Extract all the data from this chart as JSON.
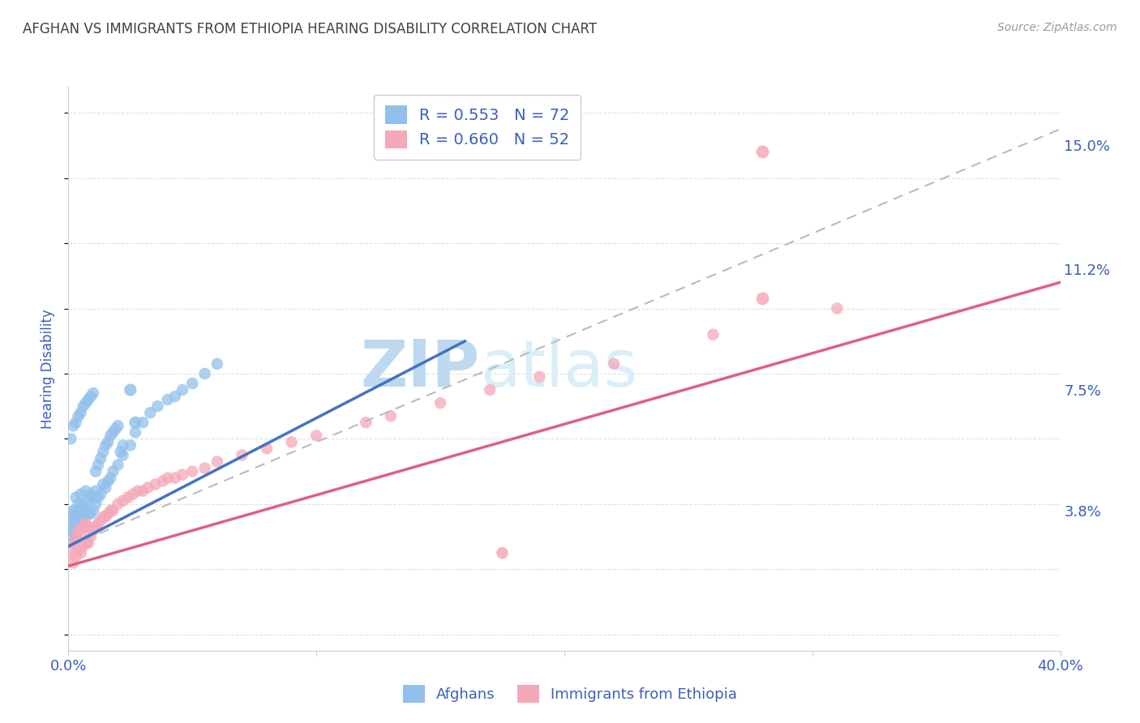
{
  "title": "AFGHAN VS IMMIGRANTS FROM ETHIOPIA HEARING DISABILITY CORRELATION CHART",
  "source": "Source: ZipAtlas.com",
  "ylabel": "Hearing Disability",
  "xlim": [
    0.0,
    0.4
  ],
  "ylim": [
    -0.005,
    0.168
  ],
  "xticks": [
    0.0,
    0.1,
    0.2,
    0.3,
    0.4
  ],
  "xticklabels": [
    "0.0%",
    "",
    "",
    "",
    "40.0%"
  ],
  "ytick_positions": [
    0.038,
    0.075,
    0.112,
    0.15
  ],
  "ytick_labels": [
    "3.8%",
    "7.5%",
    "11.2%",
    "15.0%"
  ],
  "blue_R": 0.553,
  "blue_N": 72,
  "pink_R": 0.66,
  "pink_N": 52,
  "blue_color": "#92C0EC",
  "pink_color": "#F4A8B8",
  "blue_line_color": "#4472C4",
  "pink_line_color": "#E06080",
  "dashed_line_color": "#BBBBBB",
  "legend_text_color": "#3A5FBB",
  "title_color": "#404040",
  "tick_label_color": "#3A5FBB",
  "background_color": "#FFFFFF",
  "watermark_zip": "ZIP",
  "watermark_atlas": "atlas",
  "watermark_color": "#D8EEF8",
  "grid_color": "#E0E0E0",
  "legend_label_blue": "Afghans",
  "legend_label_pink": "Immigrants from Ethiopia",
  "blue_trendline_x": [
    0.0,
    0.16
  ],
  "blue_trendline_y": [
    0.027,
    0.09
  ],
  "pink_trendline_x": [
    0.0,
    0.4
  ],
  "pink_trendline_y": [
    0.021,
    0.108
  ],
  "dashed_trendline_x": [
    0.0,
    0.4
  ],
  "dashed_trendline_y": [
    0.027,
    0.155
  ],
  "afghans_x": [
    0.001,
    0.001,
    0.001,
    0.002,
    0.002,
    0.002,
    0.002,
    0.003,
    0.003,
    0.003,
    0.003,
    0.004,
    0.004,
    0.004,
    0.005,
    0.005,
    0.005,
    0.006,
    0.006,
    0.007,
    0.007,
    0.007,
    0.008,
    0.008,
    0.009,
    0.009,
    0.01,
    0.01,
    0.011,
    0.011,
    0.012,
    0.013,
    0.014,
    0.015,
    0.016,
    0.017,
    0.018,
    0.02,
    0.022,
    0.025,
    0.027,
    0.03,
    0.033,
    0.036,
    0.04,
    0.043,
    0.046,
    0.05,
    0.055,
    0.06,
    0.001,
    0.002,
    0.003,
    0.004,
    0.005,
    0.006,
    0.007,
    0.008,
    0.009,
    0.01,
    0.011,
    0.012,
    0.013,
    0.014,
    0.015,
    0.016,
    0.017,
    0.018,
    0.019,
    0.02,
    0.021,
    0.022
  ],
  "afghans_y": [
    0.03,
    0.033,
    0.036,
    0.028,
    0.032,
    0.035,
    0.038,
    0.03,
    0.034,
    0.038,
    0.042,
    0.033,
    0.037,
    0.04,
    0.035,
    0.039,
    0.043,
    0.036,
    0.04,
    0.033,
    0.038,
    0.044,
    0.037,
    0.041,
    0.037,
    0.043,
    0.038,
    0.042,
    0.04,
    0.044,
    0.042,
    0.043,
    0.046,
    0.045,
    0.047,
    0.048,
    0.05,
    0.052,
    0.055,
    0.058,
    0.062,
    0.065,
    0.068,
    0.07,
    0.072,
    0.073,
    0.075,
    0.077,
    0.08,
    0.083,
    0.06,
    0.064,
    0.065,
    0.067,
    0.068,
    0.07,
    0.071,
    0.072,
    0.073,
    0.074,
    0.05,
    0.052,
    0.054,
    0.056,
    0.058,
    0.059,
    0.061,
    0.062,
    0.063,
    0.064,
    0.056,
    0.058
  ],
  "ethiopia_x": [
    0.001,
    0.002,
    0.002,
    0.003,
    0.003,
    0.004,
    0.004,
    0.005,
    0.005,
    0.006,
    0.006,
    0.007,
    0.007,
    0.008,
    0.008,
    0.009,
    0.01,
    0.011,
    0.012,
    0.013,
    0.014,
    0.015,
    0.016,
    0.017,
    0.018,
    0.02,
    0.022,
    0.024,
    0.026,
    0.028,
    0.03,
    0.032,
    0.035,
    0.038,
    0.04,
    0.043,
    0.046,
    0.05,
    0.055,
    0.06,
    0.07,
    0.08,
    0.09,
    0.1,
    0.12,
    0.13,
    0.15,
    0.17,
    0.19,
    0.22,
    0.26,
    0.31
  ],
  "ethiopia_y": [
    0.025,
    0.022,
    0.028,
    0.024,
    0.03,
    0.026,
    0.032,
    0.025,
    0.031,
    0.027,
    0.033,
    0.028,
    0.034,
    0.028,
    0.033,
    0.03,
    0.032,
    0.033,
    0.034,
    0.035,
    0.036,
    0.036,
    0.037,
    0.038,
    0.038,
    0.04,
    0.041,
    0.042,
    0.043,
    0.044,
    0.044,
    0.045,
    0.046,
    0.047,
    0.048,
    0.048,
    0.049,
    0.05,
    0.051,
    0.053,
    0.055,
    0.057,
    0.059,
    0.061,
    0.065,
    0.067,
    0.071,
    0.075,
    0.079,
    0.083,
    0.092,
    0.1
  ]
}
